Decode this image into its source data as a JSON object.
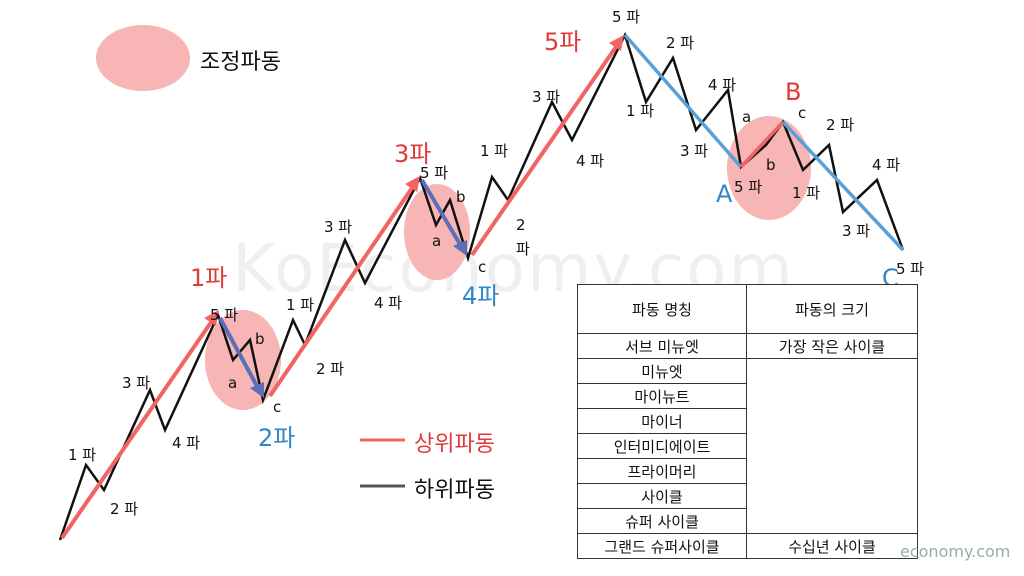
{
  "legend": {
    "correction_label": "조정파동",
    "upper_wave_label": "상위파동",
    "lower_wave_label": "하위파동"
  },
  "big_labels": {
    "wave1": "1파",
    "wave2": "2파",
    "wave3": "3파",
    "wave4": "4파",
    "wave5": "5파",
    "A": "A",
    "B": "B",
    "C": "C"
  },
  "small_labels": {
    "w1_1": "1 파",
    "w1_2": "2 파",
    "w1_3": "3 파",
    "w1_4": "4 파",
    "w1_5": "5 파",
    "w2_a": "a",
    "w2_b": "b",
    "w2_c": "c",
    "w3_1": "1 파",
    "w3_2": "2 파",
    "w3_3": "3 파",
    "w3_4": "4 파",
    "w3_5": "5 파",
    "w4_a": "a",
    "w4_b": "b",
    "w4_c": "c",
    "w5_1": "1 파",
    "w5_2_a": "2",
    "w5_2_b": "파",
    "w5_3": "3 파",
    "w5_4": "4 파",
    "w5_5": "5 파",
    "A_1": "1 파",
    "A_2": "2 파",
    "A_3": "3 파",
    "A_4": "4 파",
    "A_5": "5 파",
    "B_a": "a",
    "B_b": "b",
    "B_c": "c",
    "C_1": "1 파",
    "C_2": "2 파",
    "C_3": "3 파",
    "C_4": "4 파",
    "C_5": "5 파"
  },
  "table": {
    "header": [
      "파동 명칭",
      "파동의 크기"
    ],
    "rows": [
      "서브 미뉴엣",
      "미뉴엣",
      "마이뉴트",
      "마이너",
      "인터미디에이트",
      "프라이머리",
      "사이클",
      "슈퍼 사이클",
      "그랜드 슈퍼사이클"
    ],
    "size_top": "가장 작은 사이클",
    "size_bottom": "수십년 사이클"
  },
  "watermark": "KoEconomy.com",
  "watermark_small": "economy.com",
  "colors": {
    "upper": "#f26363",
    "lower": "#111111",
    "correction_fill": "#f7b5b5",
    "blue": "#5aa0d6",
    "arrow": "#f26363"
  }
}
